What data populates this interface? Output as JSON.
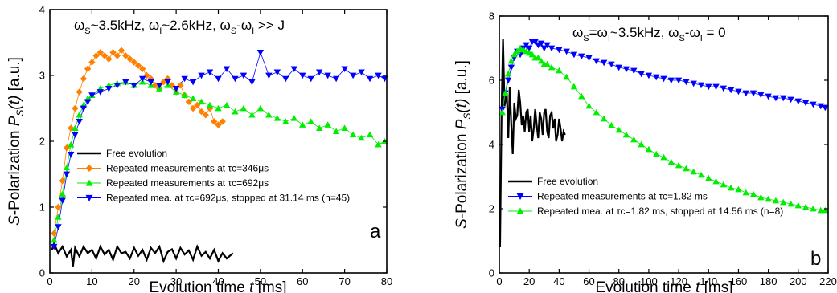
{
  "chart_data": [
    {
      "type": "scatter",
      "panel_label": "a",
      "annotation": "ωS~3.5kHz, ωI~2.6kHz, ωS-ωI >> J",
      "xlabel": "Evolution time t [ms]",
      "ylabel": "S-Polarization PS(t) [a.u.]",
      "xlim": [
        0,
        80
      ],
      "ylim": [
        0,
        4
      ],
      "xticks": [
        0,
        10,
        20,
        30,
        40,
        50,
        60,
        70,
        80
      ],
      "yticks": [
        0,
        1,
        2,
        3,
        4
      ],
      "grid": false,
      "legend_position": "bottom-left",
      "series": [
        {
          "name": "Free evolution",
          "color": "#000000",
          "marker": "none",
          "x": [
            0.5,
            1,
            2,
            3,
            4,
            5,
            5.5,
            6,
            7,
            8,
            9,
            10,
            11,
            12,
            13,
            14,
            15,
            16,
            17,
            18,
            19,
            20,
            21,
            22,
            23,
            24,
            25,
            26,
            27,
            28,
            29,
            30,
            31,
            32,
            33,
            34,
            35,
            36,
            37,
            38,
            39,
            40,
            41,
            42,
            43.5
          ],
          "y": [
            0.35,
            0.45,
            0.3,
            0.4,
            0.25,
            0.35,
            0.1,
            0.38,
            0.25,
            0.4,
            0.3,
            0.35,
            0.22,
            0.4,
            0.28,
            0.35,
            0.2,
            0.4,
            0.3,
            0.32,
            0.22,
            0.38,
            0.26,
            0.35,
            0.2,
            0.38,
            0.3,
            0.4,
            0.18,
            0.32,
            0.36,
            0.22,
            0.38,
            0.28,
            0.34,
            0.2,
            0.4,
            0.26,
            0.32,
            0.22,
            0.35,
            0.18,
            0.3,
            0.22,
            0.3
          ]
        },
        {
          "name": "Repeated measurements at τc=346μs",
          "color": "#ff8000",
          "marker": "diamond",
          "x": [
            1,
            2,
            3,
            4,
            5,
            6,
            7,
            8,
            9,
            10,
            11,
            12,
            13,
            14,
            15,
            16,
            17,
            18,
            19,
            20,
            21,
            22,
            23,
            24,
            25,
            26,
            27,
            28,
            29,
            30,
            31,
            32,
            33,
            34,
            35,
            36,
            37,
            38,
            39,
            40,
            41
          ],
          "y": [
            0.6,
            1.0,
            1.4,
            1.9,
            2.2,
            2.5,
            2.75,
            2.95,
            3.1,
            3.2,
            3.3,
            3.35,
            3.3,
            3.25,
            3.35,
            3.3,
            3.38,
            3.3,
            3.25,
            3.2,
            3.15,
            3.1,
            3.0,
            2.95,
            2.85,
            2.8,
            2.9,
            2.95,
            2.85,
            2.75,
            2.85,
            2.7,
            2.6,
            2.5,
            2.55,
            2.45,
            2.4,
            2.5,
            2.3,
            2.25,
            2.3
          ]
        },
        {
          "name": "Repeated measurements at τc=692μs",
          "color": "#00ee00",
          "marker": "triangle-up",
          "x": [
            1,
            2,
            3,
            4,
            5,
            6,
            7,
            8,
            9,
            10,
            12,
            14,
            16,
            18,
            20,
            22,
            24,
            26,
            28,
            30,
            32,
            34,
            36,
            38,
            40,
            42,
            44,
            46,
            48,
            50,
            52,
            54,
            56,
            58,
            60,
            62,
            64,
            66,
            68,
            70,
            72,
            74,
            76,
            78,
            79.5
          ],
          "y": [
            0.5,
            0.85,
            1.2,
            1.6,
            1.95,
            2.2,
            2.4,
            2.55,
            2.65,
            2.7,
            2.8,
            2.85,
            2.88,
            2.9,
            2.85,
            2.9,
            2.85,
            2.8,
            2.85,
            2.75,
            2.7,
            2.65,
            2.6,
            2.55,
            2.5,
            2.55,
            2.45,
            2.5,
            2.4,
            2.5,
            2.4,
            2.35,
            2.3,
            2.35,
            2.25,
            2.3,
            2.2,
            2.25,
            2.15,
            2.2,
            2.1,
            2.05,
            2.1,
            1.95,
            2.0
          ]
        },
        {
          "name": "Repeated mea. at τc=692μs, stopped at 31.14 ms (n=45)",
          "color": "#0000ff",
          "marker": "triangle-down",
          "x": [
            1,
            2,
            3,
            4,
            5,
            6,
            7,
            8,
            9,
            10,
            12,
            14,
            16,
            18,
            20,
            22,
            24,
            26,
            28,
            30,
            32,
            34,
            36,
            38,
            40,
            42,
            44,
            46,
            48,
            50,
            52,
            54,
            56,
            58,
            60,
            62,
            64,
            66,
            68,
            70,
            72,
            74,
            76,
            78,
            79.5
          ],
          "y": [
            0.4,
            0.7,
            1.1,
            1.5,
            1.8,
            2.1,
            2.3,
            2.5,
            2.6,
            2.7,
            2.75,
            2.8,
            2.85,
            2.9,
            2.85,
            2.95,
            2.9,
            2.85,
            2.9,
            2.8,
            2.95,
            2.9,
            3.0,
            3.05,
            2.95,
            3.1,
            2.95,
            3.0,
            2.9,
            3.35,
            3.0,
            3.05,
            2.95,
            3.1,
            3.0,
            2.95,
            3.05,
            3.0,
            2.95,
            3.1,
            3.0,
            3.05,
            2.95,
            3.0,
            2.95
          ]
        }
      ]
    },
    {
      "type": "scatter",
      "panel_label": "b",
      "annotation": "ωS=ωI~3.5kHz, ωS-ωI = 0",
      "xlabel": "Evolution time t [ms]",
      "ylabel": "S-Polarization PS(t) [a.u.]",
      "xlim": [
        0,
        220
      ],
      "ylim": [
        0,
        8
      ],
      "xticks": [
        0,
        20,
        40,
        60,
        80,
        100,
        120,
        140,
        160,
        180,
        200,
        220
      ],
      "yticks": [
        0,
        2,
        4,
        6,
        8
      ],
      "grid": false,
      "legend_position": "bottom-left",
      "series": [
        {
          "name": "Free evolution",
          "color": "#000000",
          "marker": "none",
          "x": [
            0.5,
            1.5,
            2.5,
            3.5,
            5,
            6,
            7,
            8,
            9,
            10,
            11,
            12,
            13,
            14,
            15,
            16,
            17,
            18,
            19,
            20,
            21,
            22,
            23,
            24,
            25,
            26,
            27,
            28,
            29,
            30,
            31,
            32,
            33,
            34,
            35,
            36,
            37,
            38,
            39,
            40,
            41,
            42,
            43,
            44
          ],
          "y": [
            0.8,
            5.0,
            7.3,
            5.2,
            5.6,
            4.2,
            5.8,
            4.6,
            3.7,
            5.3,
            4.8,
            4.9,
            5.7,
            5.3,
            4.6,
            4.9,
            4.4,
            5.0,
            5.1,
            4.4,
            4.9,
            4.1,
            4.5,
            5.1,
            4.6,
            4.2,
            5.0,
            4.8,
            4.3,
            5.0,
            5.1,
            4.4,
            4.2,
            4.9,
            5.0,
            4.5,
            4.8,
            4.1,
            4.3,
            4.8,
            4.5,
            4.1,
            4.4,
            4.3
          ]
        },
        {
          "name": "Repeated measurements at τc=1.82 ms",
          "color": "#0000ff",
          "marker": "triangle-down",
          "x": [
            2,
            4,
            6,
            8,
            10,
            12,
            14,
            16,
            18,
            20,
            22,
            24,
            26,
            28,
            30,
            32,
            35,
            40,
            45,
            50,
            55,
            60,
            65,
            70,
            75,
            80,
            85,
            90,
            95,
            100,
            105,
            110,
            115,
            120,
            125,
            130,
            135,
            140,
            145,
            150,
            155,
            160,
            165,
            170,
            175,
            180,
            185,
            190,
            195,
            200,
            205,
            210,
            215,
            218
          ],
          "y": [
            5.1,
            5.6,
            6.0,
            6.4,
            6.7,
            6.9,
            6.8,
            7.0,
            7.1,
            7.0,
            7.2,
            7.2,
            7.1,
            7.15,
            7.0,
            7.1,
            7.0,
            6.95,
            6.9,
            6.8,
            6.75,
            6.7,
            6.6,
            6.55,
            6.5,
            6.4,
            6.35,
            6.3,
            6.2,
            6.15,
            6.1,
            6.05,
            6.0,
            6.0,
            5.95,
            5.9,
            5.85,
            5.8,
            5.8,
            5.75,
            5.7,
            5.65,
            5.6,
            5.6,
            5.55,
            5.5,
            5.45,
            5.45,
            5.4,
            5.35,
            5.3,
            5.25,
            5.2,
            5.15
          ]
        },
        {
          "name": "Repeated mea. at τc=1.82 ms, stopped at 14.56 ms (n=8)",
          "color": "#00ee00",
          "marker": "triangle-up",
          "x": [
            2,
            4,
            6,
            8,
            10,
            12,
            14,
            16,
            18,
            20,
            22,
            24,
            26,
            28,
            30,
            32,
            35,
            40,
            45,
            50,
            55,
            60,
            65,
            70,
            75,
            80,
            85,
            90,
            95,
            100,
            105,
            110,
            115,
            120,
            125,
            130,
            135,
            140,
            145,
            150,
            155,
            160,
            165,
            170,
            175,
            180,
            185,
            190,
            195,
            200,
            205,
            210,
            215,
            218
          ],
          "y": [
            5.0,
            5.6,
            6.2,
            6.6,
            6.8,
            6.9,
            7.0,
            6.95,
            6.9,
            6.85,
            6.8,
            6.7,
            6.7,
            6.6,
            6.5,
            6.5,
            6.4,
            6.3,
            6.1,
            5.8,
            5.5,
            5.2,
            5.0,
            4.8,
            4.6,
            4.45,
            4.3,
            4.15,
            4.0,
            3.85,
            3.7,
            3.6,
            3.45,
            3.35,
            3.25,
            3.15,
            3.05,
            2.95,
            2.85,
            2.75,
            2.65,
            2.6,
            2.5,
            2.45,
            2.35,
            2.3,
            2.25,
            2.2,
            2.15,
            2.1,
            2.05,
            2.0,
            1.95,
            1.95
          ]
        }
      ]
    }
  ]
}
